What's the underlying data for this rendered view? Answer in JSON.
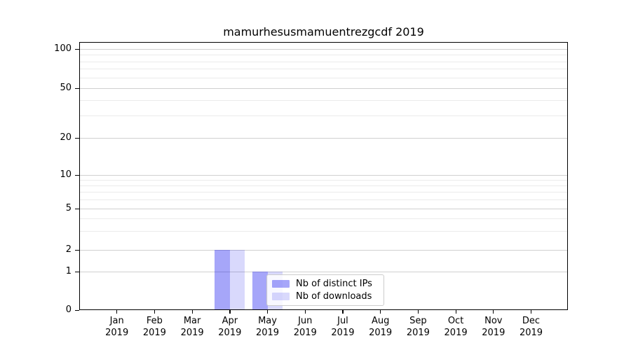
{
  "chart_data": {
    "type": "bar",
    "title": "mamurhesusmamuentrezgcdf 2019",
    "x": {
      "categories": [
        "Jan",
        "Feb",
        "Mar",
        "Apr",
        "May",
        "Jun",
        "Jul",
        "Aug",
        "Sep",
        "Oct",
        "Nov",
        "Dec"
      ],
      "year_label": "2019"
    },
    "series": [
      {
        "name": "Nb of distinct IPs",
        "color": "#0000ee",
        "alpha": 0.35,
        "solid_hex": "#a7a7f9",
        "values": [
          0,
          0,
          0,
          2,
          1,
          0,
          0,
          0,
          0,
          0,
          0,
          0
        ]
      },
      {
        "name": "Nb of downloads",
        "color": "#0000ee",
        "alpha": 0.15,
        "solid_hex": "#d8d8fa",
        "values": [
          0,
          0,
          0,
          2,
          1,
          0,
          0,
          0,
          0,
          0,
          0,
          0
        ]
      }
    ],
    "y_axis": {
      "scale": "symlog",
      "major_ticks": [
        0,
        1,
        2,
        5,
        10,
        20,
        50,
        100
      ],
      "minor_ticks": [
        3,
        4,
        6,
        7,
        8,
        9,
        30,
        40,
        60,
        70,
        80,
        90
      ],
      "ylim": [
        0,
        100
      ]
    },
    "grid": {
      "show": true,
      "major_color": "#d0d0d0",
      "minor_color": "#ebebeb"
    },
    "legend": {
      "position": "lower-center-inside",
      "border_color": "#cccccc",
      "entries": [
        "Nb of distinct IPs",
        "Nb of downloads"
      ]
    },
    "axis_color": "#000000"
  }
}
